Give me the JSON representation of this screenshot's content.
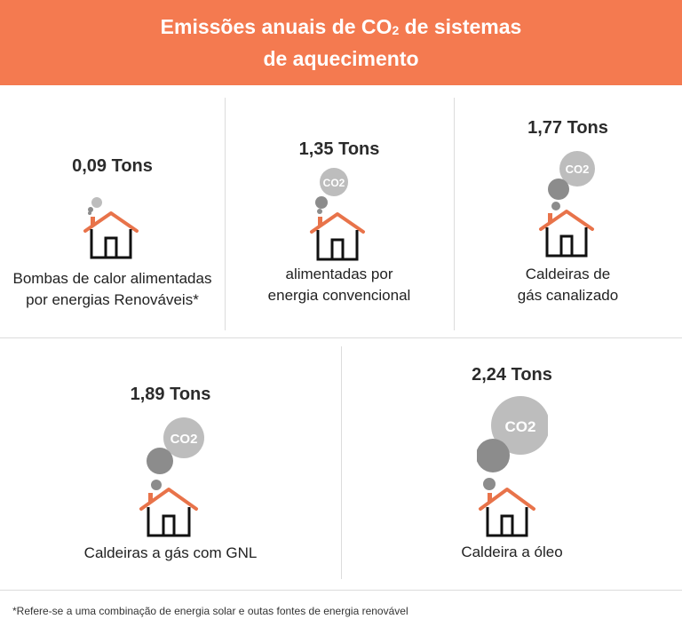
{
  "header": {
    "title_line1_pre": "Emissões anuais de CO",
    "title_line1_sub": "2",
    "title_line1_post": " de sistemas",
    "title_line2": "de aquecimento"
  },
  "items": [
    {
      "value": "0,09 Tons",
      "label_line1": "Bombas de calor alimentadas",
      "label_line2": "por energias Renováveis*"
    },
    {
      "value": "1,35 Tons",
      "label_line1": "alimentadas por",
      "label_line2": "energia convencional",
      "co2_label": "CO2"
    },
    {
      "value": "1,77 Tons",
      "label_line1": "Caldeiras de",
      "label_line2": "gás canalizado",
      "co2_label": "CO2"
    },
    {
      "value": "1,89 Tons",
      "label_line1": "Caldeiras a gás com GNL",
      "co2_label": "CO2"
    },
    {
      "value": "2,24 Tons",
      "label_line1": "Caldeira a óleo",
      "co2_label": "CO2"
    }
  ],
  "footnote": "*Refere-se a uma combinação de energia solar e outas fontes de energia renovável",
  "colors": {
    "header_bg": "#f47a50",
    "roof": "#e8734a",
    "smoke_light": "#bdbdbd",
    "smoke_dark": "#8c8c8c",
    "divider": "#dcdcdc"
  }
}
